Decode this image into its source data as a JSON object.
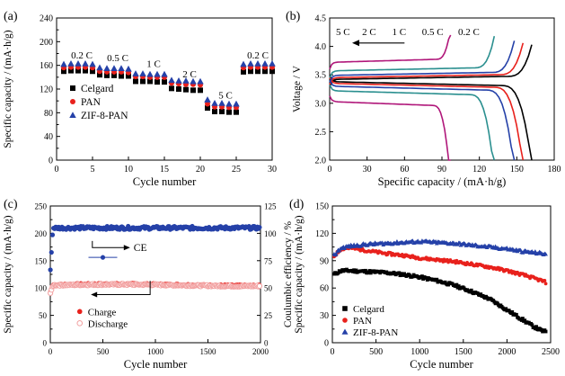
{
  "chart_data": [
    {
      "id": "a",
      "type": "scatter",
      "panel_label": "(a)",
      "xlabel": "Cycle number",
      "ylabel": "Specific capacity / (mA·h/g)",
      "xlim": [
        0,
        30
      ],
      "ylim": [
        0,
        240
      ],
      "xticks": [
        0,
        5,
        10,
        15,
        20,
        25,
        30
      ],
      "yticks": [
        0,
        40,
        80,
        120,
        160,
        200,
        240
      ],
      "grid": false,
      "legend_position": "middle-left",
      "annotations": [
        {
          "text": "0.2 C",
          "x": 3.5,
          "y": 172
        },
        {
          "text": "0.5 C",
          "x": 8.5,
          "y": 167
        },
        {
          "text": "1 C",
          "x": 13.5,
          "y": 157
        },
        {
          "text": "2 C",
          "x": 18.5,
          "y": 140
        },
        {
          "text": "5 C",
          "x": 23.5,
          "y": 104
        },
        {
          "text": "0.2 C",
          "x": 28,
          "y": 172
        }
      ],
      "series": [
        {
          "name": "Celgard",
          "color": "#000000",
          "marker": "square",
          "x": [
            1,
            2,
            3,
            4,
            5,
            6,
            7,
            8,
            9,
            10,
            11,
            12,
            13,
            14,
            15,
            16,
            17,
            18,
            19,
            20,
            21,
            22,
            23,
            24,
            25,
            26,
            27,
            28,
            29,
            30
          ],
          "y": [
            150,
            151,
            151,
            151,
            150,
            144,
            143,
            143,
            142,
            142,
            133,
            133,
            133,
            132,
            132,
            121,
            120,
            119,
            118,
            118,
            88,
            82,
            82,
            81,
            81,
            149,
            150,
            150,
            150,
            150
          ]
        },
        {
          "name": "PAN",
          "color": "#e8211c",
          "marker": "circle",
          "x": [
            1,
            2,
            3,
            4,
            5,
            6,
            7,
            8,
            9,
            10,
            11,
            12,
            13,
            14,
            15,
            16,
            17,
            18,
            19,
            20,
            21,
            22,
            23,
            24,
            25,
            26,
            27,
            28,
            29,
            30
          ],
          "y": [
            156,
            157,
            157,
            157,
            156,
            150,
            149,
            149,
            149,
            148,
            141,
            141,
            140,
            140,
            140,
            130,
            129,
            128,
            128,
            127,
            95,
            90,
            90,
            89,
            89,
            156,
            157,
            157,
            157,
            157
          ]
        },
        {
          "name": "ZIF-8-PAN",
          "color": "#2541a8",
          "marker": "triangle",
          "x": [
            1,
            2,
            3,
            4,
            5,
            6,
            7,
            8,
            9,
            10,
            11,
            12,
            13,
            14,
            15,
            16,
            17,
            18,
            19,
            20,
            21,
            22,
            23,
            24,
            25,
            26,
            27,
            28,
            29,
            30
          ],
          "y": [
            162,
            163,
            163,
            163,
            162,
            156,
            155,
            155,
            155,
            154,
            146,
            146,
            145,
            145,
            145,
            135,
            134,
            134,
            133,
            133,
            102,
            96,
            96,
            95,
            95,
            162,
            163,
            163,
            163,
            163
          ]
        }
      ]
    },
    {
      "id": "b",
      "type": "line",
      "panel_label": "(b)",
      "xlabel": "Specific capacity / (mA·h/g)",
      "ylabel": "Voltage / V",
      "xlim": [
        0,
        180
      ],
      "ylim": [
        2.0,
        4.5
      ],
      "xticks": [
        0,
        30,
        60,
        90,
        120,
        150,
        180
      ],
      "yticks": [
        2.0,
        2.5,
        3.0,
        3.5,
        4.0,
        4.5
      ],
      "grid": false,
      "annotations": [
        {
          "text": "5 C",
          "x": 5,
          "y": 4.2
        },
        {
          "text": "2 C",
          "x": 26,
          "y": 4.2
        },
        {
          "text": "1 C",
          "x": 50,
          "y": 4.2
        },
        {
          "text": "0.5 C",
          "x": 74,
          "y": 4.2
        },
        {
          "text": "0.2 C",
          "x": 103,
          "y": 4.2
        }
      ],
      "arrow": {
        "from": [
          60,
          4.06
        ],
        "to": [
          18,
          4.06
        ]
      },
      "series": [
        {
          "name": "0.2 C",
          "color": "#000000",
          "capacity": 162,
          "charge_plateau": 3.42,
          "discharge_plateau": 3.38
        },
        {
          "name": "0.5 C",
          "color": "#e8211c",
          "capacity": 155,
          "charge_plateau": 3.45,
          "discharge_plateau": 3.35
        },
        {
          "name": "1 C",
          "color": "#2541a8",
          "capacity": 148,
          "charge_plateau": 3.49,
          "discharge_plateau": 3.3
        },
        {
          "name": "2 C",
          "color": "#2a8f8f",
          "capacity": 132,
          "charge_plateau": 3.57,
          "discharge_plateau": 3.22
        },
        {
          "name": "5 C",
          "color": "#b0177a",
          "capacity": 97,
          "charge_plateau": 3.72,
          "discharge_plateau": 3.03
        }
      ]
    },
    {
      "id": "c",
      "type": "scatter",
      "panel_label": "(c)",
      "xlabel": "Cycle number",
      "ylabel": "Specific capacity / (mA·h/g)",
      "ylabel_right": "Coulumbic efficiency / %",
      "xlim": [
        0,
        2000
      ],
      "ylim": [
        0,
        250
      ],
      "ylim_right": [
        0,
        125
      ],
      "xticks": [
        0,
        500,
        1000,
        1500,
        2000
      ],
      "yticks": [
        0,
        50,
        100,
        150,
        200,
        250
      ],
      "yticks_left_all": [
        0,
        25,
        50,
        75,
        100,
        125,
        150,
        175,
        200,
        225,
        250
      ],
      "yticks_right": [
        0,
        25,
        50,
        75,
        100,
        125
      ],
      "grid": false,
      "legend_position": "bottom-left",
      "callouts": [
        {
          "text": "CE",
          "target": "right-axis"
        },
        {
          "text": "",
          "target": "left-axis"
        }
      ],
      "series": [
        {
          "name": "Charge",
          "color": "#e8211c",
          "marker": "circle",
          "axis": "left",
          "start": 92,
          "level": 106
        },
        {
          "name": "Discharge",
          "color": "#f2a0a0",
          "marker": "open-circle",
          "axis": "left",
          "start": 90,
          "level": 105
        },
        {
          "name": "CE",
          "color": "#2541a8",
          "marker": "circle",
          "axis": "right",
          "start": 65,
          "level": 105
        }
      ]
    },
    {
      "id": "d",
      "type": "scatter",
      "panel_label": "(d)",
      "xlabel": "Cycle number",
      "ylabel": "Specific capacity / (mA·h/g)",
      "xlim": [
        0,
        2500
      ],
      "ylim": [
        0,
        150
      ],
      "xticks": [
        0,
        500,
        1000,
        1500,
        2000,
        2500
      ],
      "yticks": [
        0,
        30,
        60,
        90,
        120,
        150
      ],
      "grid": false,
      "legend_position": "bottom-left",
      "series": [
        {
          "name": "Celgard",
          "color": "#000000",
          "marker": "square",
          "x": [
            20,
            100,
            200,
            400,
            600,
            800,
            1000,
            1200,
            1400,
            1600,
            1800,
            1900,
            2000,
            2100,
            2200,
            2300,
            2400,
            2450
          ],
          "y": [
            75,
            79,
            79,
            78,
            77,
            75,
            72,
            68,
            63,
            56,
            48,
            42,
            36,
            30,
            24,
            18,
            13,
            12
          ]
        },
        {
          "name": "PAN",
          "color": "#e8211c",
          "marker": "circle",
          "x": [
            20,
            100,
            200,
            400,
            600,
            800,
            1000,
            1200,
            1400,
            1600,
            1800,
            2000,
            2200,
            2400,
            2450
          ],
          "y": [
            95,
            103,
            104,
            101,
            98,
            96,
            93,
            91,
            89,
            86,
            83,
            79,
            74,
            68,
            66
          ]
        },
        {
          "name": "ZIF-8-PAN",
          "color": "#2541a8",
          "marker": "triangle",
          "x": [
            20,
            100,
            200,
            400,
            600,
            800,
            1000,
            1200,
            1400,
            1600,
            1800,
            2000,
            2200,
            2400,
            2450
          ],
          "y": [
            96,
            104,
            106,
            108,
            109,
            110,
            111,
            110,
            109,
            107,
            105,
            103,
            100,
            98,
            97
          ]
        }
      ]
    }
  ]
}
